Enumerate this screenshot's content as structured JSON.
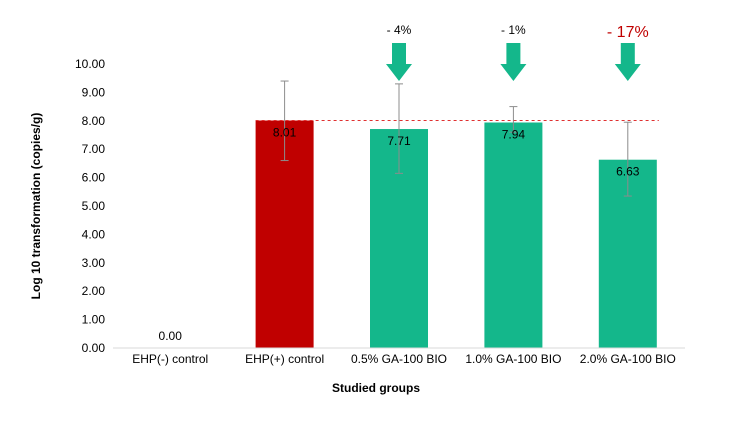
{
  "chart_data": {
    "type": "bar",
    "title": "",
    "xlabel": "Studied groups",
    "ylabel": "Log 10 transformation (copies/g)",
    "ylim": [
      0,
      10
    ],
    "yticks": [
      "0.00",
      "1.00",
      "2.00",
      "3.00",
      "4.00",
      "5.00",
      "6.00",
      "7.00",
      "8.00",
      "9.00",
      "10.00"
    ],
    "categories": [
      "EHP(-) control",
      "EHP(+) control",
      "0.5% GA-100 BIO",
      "1.0% GA-100 BIO",
      "2.0% GA-100 BIO"
    ],
    "values": [
      0.0,
      8.01,
      7.71,
      7.94,
      6.63
    ],
    "value_labels": [
      "0.00",
      "8.01",
      "7.71",
      "7.94",
      "6.63"
    ],
    "error_bars": [
      null,
      [
        6.6,
        9.4
      ],
      [
        6.15,
        9.3
      ],
      [
        7.6,
        8.5
      ],
      [
        5.35,
        7.95
      ]
    ],
    "bar_colors": [
      "#c00000",
      "#c00000",
      "#14b78b",
      "#14b78b",
      "#14b78b"
    ],
    "reference_line": {
      "value": 8.01,
      "color": "#e03030",
      "style": "dashed"
    },
    "annotations": [
      {
        "category_index": 2,
        "text": "- 4%",
        "highlight": false
      },
      {
        "category_index": 3,
        "text": "- 1%",
        "highlight": false
      },
      {
        "category_index": 4,
        "text": "- 17%",
        "highlight": true
      }
    ],
    "arrow_color": "#14b78b",
    "grid": false,
    "legend": "none"
  }
}
